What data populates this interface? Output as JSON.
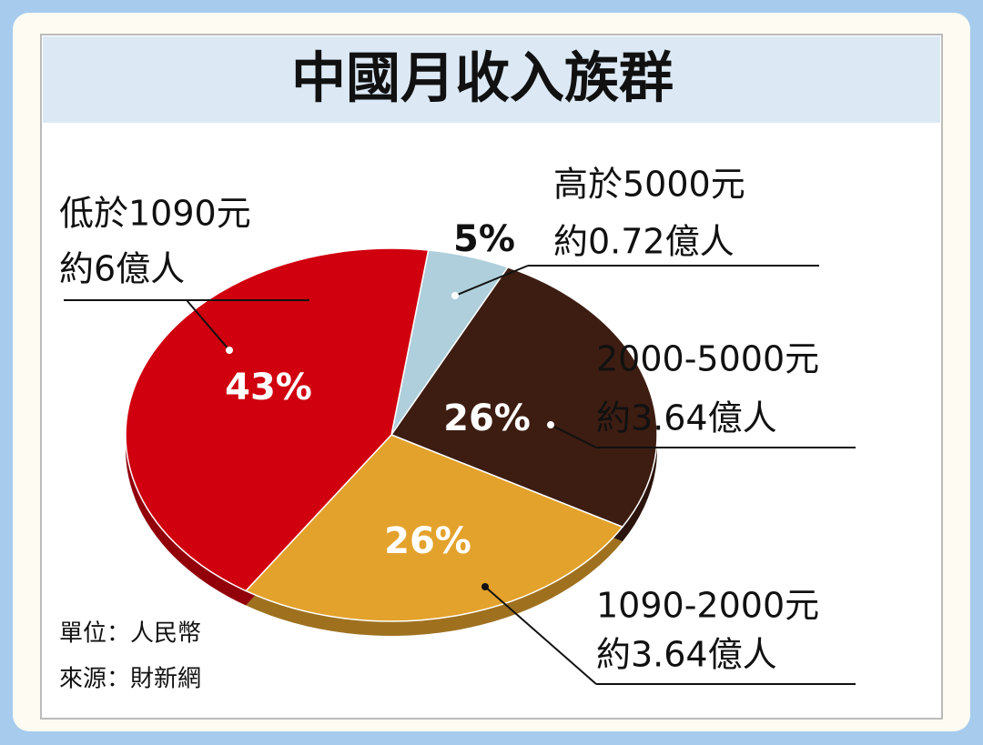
{
  "chart_data": {
    "type": "pie",
    "title": "中國月收入族群",
    "categories": [
      "高於5000元",
      "2000-5000元",
      "1090-2000元",
      "低於1090元"
    ],
    "population_labels": [
      "約0.72億人",
      "約3.64億人",
      "約3.64億人",
      "約6億人"
    ],
    "values": [
      5,
      26,
      26,
      43
    ],
    "value_labels": [
      "5%",
      "26%",
      "26%",
      "43%"
    ],
    "colors": [
      "#aecfdb",
      "#3d1d12",
      "#e3a22c",
      "#d0000e"
    ],
    "notes": [
      "單位：人民幣",
      "來源：財新網"
    ]
  }
}
